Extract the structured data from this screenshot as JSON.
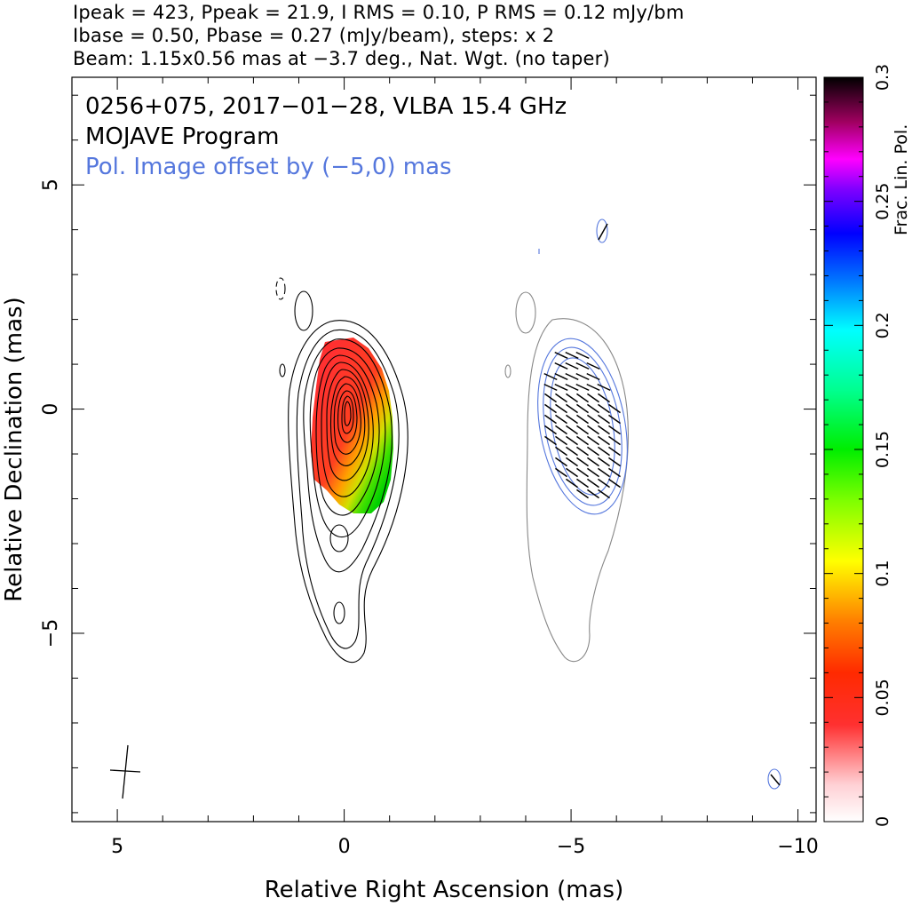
{
  "header": {
    "line1": "Ipeak = 423, Ppeak = 21.9, I RMS = 0.10, P RMS = 0.12 mJy/bm",
    "line2": "Ibase = 0.50, Pbase = 0.27 (mJy/beam), steps: x 2",
    "line3": "Beam: 1.15x0.56 mas at −3.7 deg., Nat. Wgt. (no taper)"
  },
  "plot": {
    "title1": "0256+075, 2017−01−28, VLBA 15.4 GHz",
    "title2": "MOJAVE Program",
    "title3": "Pol. Image offset by (−5,0) mas",
    "title3_color": "#5577dd"
  },
  "chart_data": {
    "type": "heatmap",
    "xlabel": "Relative Right Ascension (mas)",
    "ylabel": "Relative Declination (mas)",
    "xlim": [
      6,
      -10.4
    ],
    "ylim": [
      -9.2,
      7.4
    ],
    "x_ticks": [
      5,
      0,
      -5,
      -10
    ],
    "x_tick_labels": [
      "5",
      "0",
      "−5",
      "−10"
    ],
    "y_ticks": [
      5,
      0,
      -5
    ],
    "y_tick_labels": [
      "5",
      "0",
      "−5"
    ],
    "colorbar": {
      "label": "Frac. Lin. Pol.",
      "range": [
        0,
        0.3
      ],
      "ticks": [
        0,
        0.05,
        0.1,
        0.15,
        0.2,
        0.25,
        0.3
      ],
      "tick_labels": [
        "0",
        "0.05",
        "0.1",
        "0.15",
        "0.2",
        "0.25",
        "0.3"
      ]
    },
    "source": {
      "name": "0256+075",
      "date": "2017-01-28",
      "instrument": "VLBA",
      "frequency": "15.4 GHz",
      "peak_position_mas": [
        0.2,
        -0.1
      ]
    },
    "pol_offset_mas": [
      -5,
      0
    ],
    "beam": {
      "major_mas": 1.15,
      "minor_mas": 0.56,
      "pa_deg": -3.7
    },
    "stats": {
      "Ipeak": 423,
      "Ppeak": 21.9,
      "I_RMS": 0.1,
      "P_RMS": 0.12,
      "Ibase": 0.5,
      "Pbase": 0.27,
      "step": 2
    }
  }
}
